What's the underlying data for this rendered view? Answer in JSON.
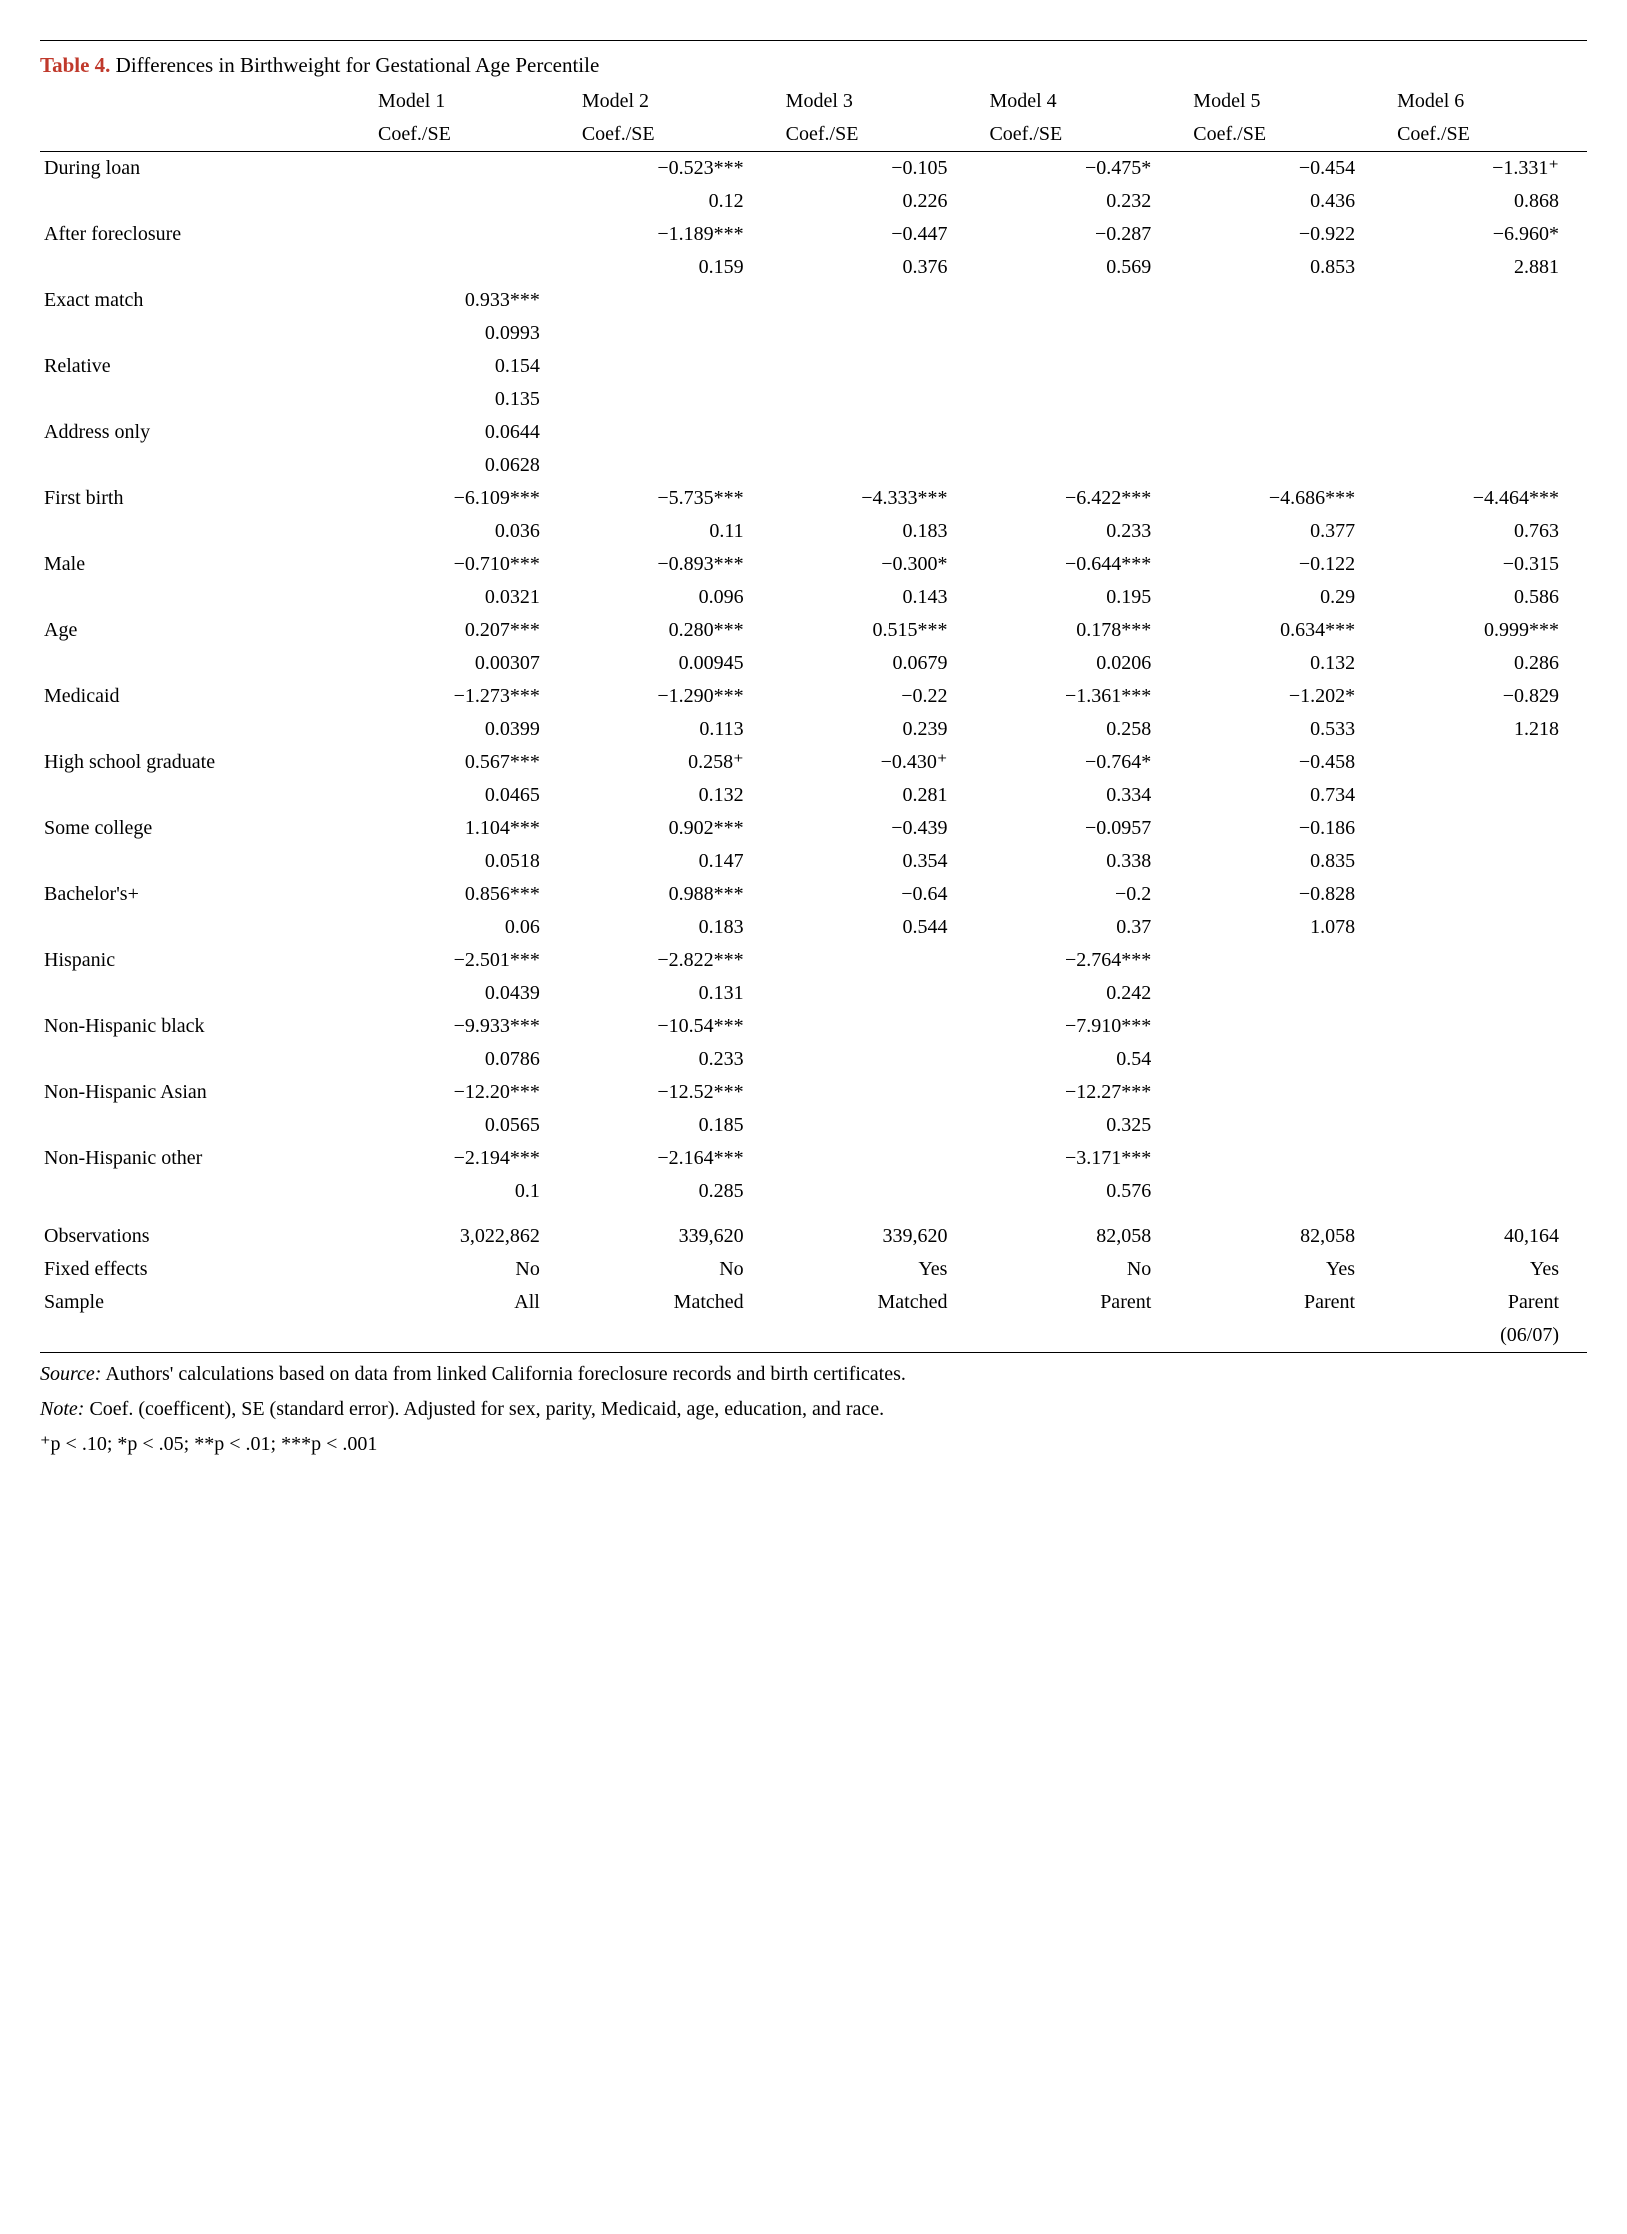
{
  "title_label": "Table 4.",
  "title_text": "Differences in Birthweight for Gestational Age Percentile",
  "header_row1": [
    "",
    "Model 1",
    "Model 2",
    "Model 3",
    "Model 4",
    "Model 5",
    "Model 6"
  ],
  "header_row2": [
    "",
    "Coef./SE",
    "Coef./SE",
    "Coef./SE",
    "Coef./SE",
    "Coef./SE",
    "Coef./SE"
  ],
  "vars": [
    {
      "label": "During loan",
      "coef": [
        "",
        "−0.523***",
        "−0.105",
        "−0.475*",
        "−0.454",
        "−1.331⁺"
      ],
      "se": [
        "",
        "0.12",
        "0.226",
        "0.232",
        "0.436",
        "0.868"
      ]
    },
    {
      "label": "After foreclosure",
      "coef": [
        "",
        "−1.189***",
        "−0.447",
        "−0.287",
        "−0.922",
        "−6.960*"
      ],
      "se": [
        "",
        "0.159",
        "0.376",
        "0.569",
        "0.853",
        "2.881"
      ]
    },
    {
      "label": "Exact match",
      "coef": [
        "0.933***",
        "",
        "",
        "",
        "",
        ""
      ],
      "se": [
        "0.0993",
        "",
        "",
        "",
        "",
        ""
      ]
    },
    {
      "label": "Relative",
      "coef": [
        "0.154",
        "",
        "",
        "",
        "",
        ""
      ],
      "se": [
        "0.135",
        "",
        "",
        "",
        "",
        ""
      ]
    },
    {
      "label": "Address only",
      "coef": [
        "0.0644",
        "",
        "",
        "",
        "",
        ""
      ],
      "se": [
        "0.0628",
        "",
        "",
        "",
        "",
        ""
      ]
    },
    {
      "label": "First birth",
      "coef": [
        "−6.109***",
        "−5.735***",
        "−4.333***",
        "−6.422***",
        "−4.686***",
        "−4.464***"
      ],
      "se": [
        "0.036",
        "0.11",
        "0.183",
        "0.233",
        "0.377",
        "0.763"
      ]
    },
    {
      "label": "Male",
      "coef": [
        "−0.710***",
        "−0.893***",
        "−0.300*",
        "−0.644***",
        "−0.122",
        "−0.315"
      ],
      "se": [
        "0.0321",
        "0.096",
        "0.143",
        "0.195",
        "0.29",
        "0.586"
      ]
    },
    {
      "label": "Age",
      "coef": [
        "0.207***",
        "0.280***",
        "0.515***",
        "0.178***",
        "0.634***",
        "0.999***"
      ],
      "se": [
        "0.00307",
        "0.00945",
        "0.0679",
        "0.0206",
        "0.132",
        "0.286"
      ]
    },
    {
      "label": "Medicaid",
      "coef": [
        "−1.273***",
        "−1.290***",
        "−0.22",
        "−1.361***",
        "−1.202*",
        "−0.829"
      ],
      "se": [
        "0.0399",
        "0.113",
        "0.239",
        "0.258",
        "0.533",
        "1.218"
      ]
    },
    {
      "label": "High school graduate",
      "coef": [
        "0.567***",
        "0.258⁺",
        "−0.430⁺",
        "−0.764*",
        "−0.458",
        ""
      ],
      "se": [
        "0.0465",
        "0.132",
        "0.281",
        "0.334",
        "0.734",
        ""
      ]
    },
    {
      "label": "Some college",
      "coef": [
        "1.104***",
        "0.902***",
        "−0.439",
        "−0.0957",
        "−0.186",
        ""
      ],
      "se": [
        "0.0518",
        "0.147",
        "0.354",
        "0.338",
        "0.835",
        ""
      ]
    },
    {
      "label": "Bachelor's+",
      "coef": [
        "0.856***",
        "0.988***",
        "−0.64",
        "−0.2",
        "−0.828",
        ""
      ],
      "se": [
        "0.06",
        "0.183",
        "0.544",
        "0.37",
        "1.078",
        ""
      ]
    },
    {
      "label": "Hispanic",
      "coef": [
        "−2.501***",
        "−2.822***",
        "",
        "−2.764***",
        "",
        ""
      ],
      "se": [
        "0.0439",
        "0.131",
        "",
        "0.242",
        "",
        ""
      ]
    },
    {
      "label": "Non-Hispanic black",
      "coef": [
        "−9.933***",
        "−10.54***",
        "",
        "−7.910***",
        "",
        ""
      ],
      "se": [
        "0.0786",
        "0.233",
        "",
        "0.54",
        "",
        ""
      ]
    },
    {
      "label": "Non-Hispanic Asian",
      "coef": [
        "−12.20***",
        "−12.52***",
        "",
        "−12.27***",
        "",
        ""
      ],
      "se": [
        "0.0565",
        "0.185",
        "",
        "0.325",
        "",
        ""
      ]
    },
    {
      "label": "Non-Hispanic other",
      "coef": [
        "−2.194***",
        "−2.164***",
        "",
        "−3.171***",
        "",
        ""
      ],
      "se": [
        "0.1",
        "0.285",
        "",
        "0.576",
        "",
        ""
      ]
    }
  ],
  "bottom_rows": [
    {
      "label": "Observations",
      "vals": [
        "3,022,862",
        "339,620",
        "339,620",
        "82,058",
        "82,058",
        "40,164"
      ]
    },
    {
      "label": "Fixed effects",
      "vals": [
        "No",
        "No",
        "Yes",
        "No",
        "Yes",
        "Yes"
      ]
    },
    {
      "label": "Sample",
      "vals": [
        "All",
        "Matched",
        "Matched",
        "Parent",
        "Parent",
        "Parent"
      ]
    },
    {
      "label": "",
      "vals": [
        "",
        "",
        "",
        "",
        "",
        "(06/07)"
      ]
    }
  ],
  "footnote_source_label": "Source:",
  "footnote_source_text": " Authors' calculations based on data from linked California foreclosure records and birth certificates.",
  "footnote_note_label": "Note:",
  "footnote_note_text": " Coef. (coefficent), SE (standard error). Adjusted for sex, parity, Medicaid, age, education, and race.",
  "footnote_sig": "⁺p < .10; *p < .05; **p < .01; ***p < .001",
  "colors": {
    "title_accent": "#c0392b",
    "text": "#000000",
    "background": "#ffffff",
    "rule": "#000000"
  },
  "typography": {
    "base_fontsize_pt": 15,
    "title_fontsize_pt": 16,
    "font_family": "serif"
  }
}
